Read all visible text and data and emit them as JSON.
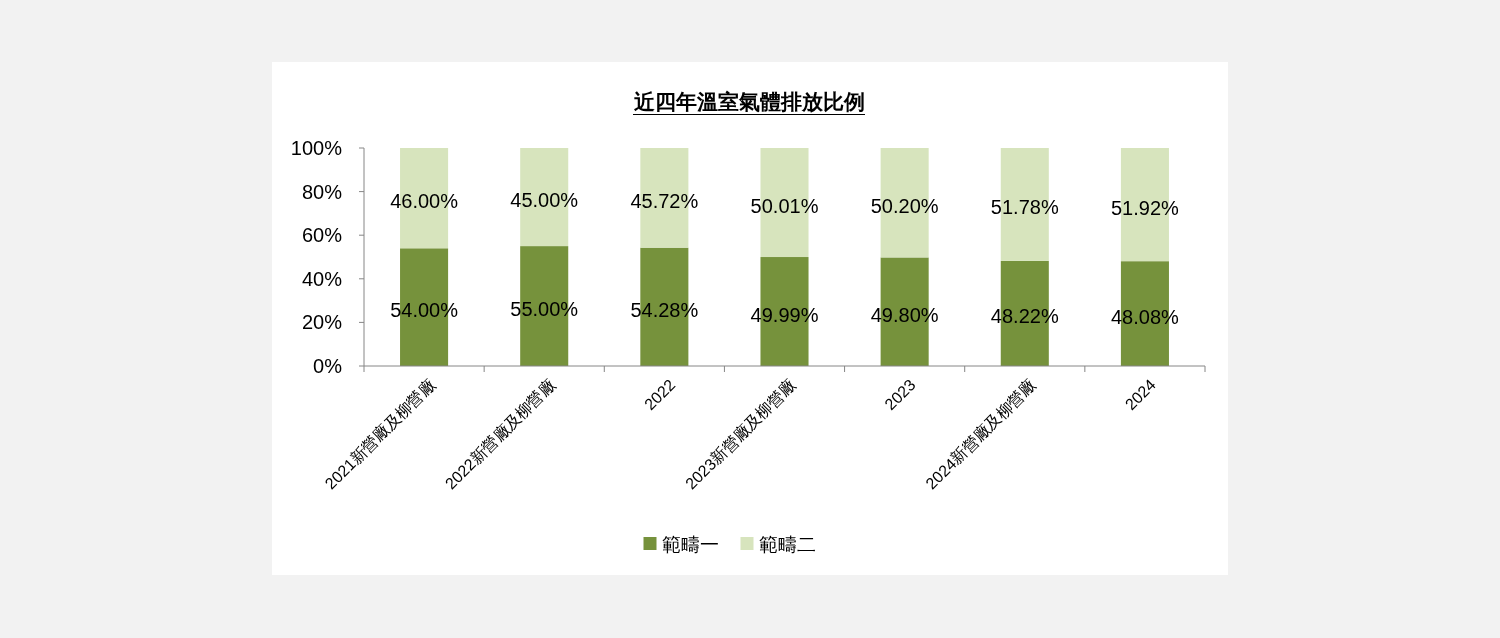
{
  "chart_data": {
    "type": "bar",
    "title": "近四年溫室氣體排放比例",
    "categories": [
      "2021新營廠及柳營廠",
      "2022新營廠及柳營廠",
      "2022",
      "2023新營廠及柳營廠",
      "2023",
      "2024新營廠及柳營廠",
      "2024"
    ],
    "stacked": true,
    "series": [
      {
        "name": "範疇一",
        "color": "#76923c",
        "values": [
          54.0,
          55.0,
          54.28,
          49.99,
          49.8,
          48.22,
          48.08
        ],
        "value_labels": [
          "54.00%",
          "55.00%",
          "54.28%",
          "49.99%",
          "49.80%",
          "48.22%",
          "48.08%"
        ]
      },
      {
        "name": "範疇二",
        "color": "#d7e4bd",
        "values": [
          46.0,
          45.0,
          45.72,
          50.01,
          50.2,
          51.78,
          51.92
        ],
        "value_labels": [
          "46.00%",
          "45.00%",
          "45.72%",
          "50.01%",
          "50.20%",
          "51.78%",
          "51.92%"
        ]
      }
    ],
    "ylim": [
      0,
      100
    ],
    "yticks": [
      {
        "value": 0,
        "label": "0%"
      },
      {
        "value": 20,
        "label": "20%"
      },
      {
        "value": 40,
        "label": "40%"
      },
      {
        "value": 60,
        "label": "60%"
      },
      {
        "value": 80,
        "label": "80%"
      },
      {
        "value": 100,
        "label": "100%"
      }
    ],
    "grid": false,
    "legend": "bottom"
  }
}
